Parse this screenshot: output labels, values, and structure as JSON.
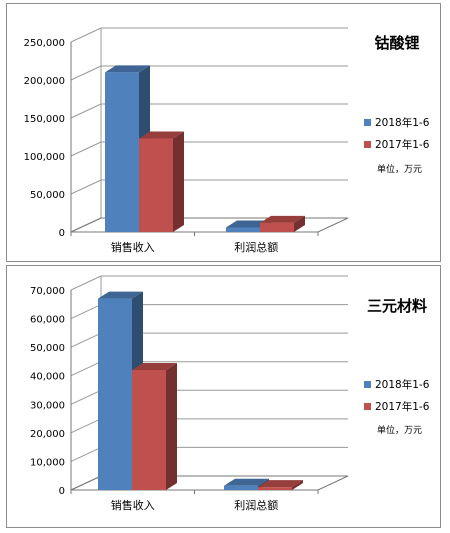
{
  "chart_data": [
    {
      "type": "bar",
      "title": "钴酸锂",
      "categories": [
        "销售收入",
        "利润总额"
      ],
      "series": [
        {
          "name": "2018年1-6",
          "values": [
            210000,
            6000
          ]
        },
        {
          "name": "2017年1-6",
          "values": [
            123000,
            12000
          ]
        }
      ],
      "yticks": [
        "0",
        "50,000",
        "100,000",
        "150,000",
        "200,000",
        "250,000"
      ],
      "ylim": [
        0,
        250000
      ],
      "unit_note": "单位，万元",
      "colors": {
        "s0": "#4f81bd",
        "s1": "#c0504d"
      }
    },
    {
      "type": "bar",
      "title": "三元材料",
      "categories": [
        "销售收入",
        "利润总额"
      ],
      "series": [
        {
          "name": "2018年1-6",
          "values": [
            67000,
            1500
          ]
        },
        {
          "name": "2017年1-6",
          "values": [
            42000,
            1000
          ]
        }
      ],
      "yticks": [
        "0",
        "10,000",
        "20,000",
        "30,000",
        "40,000",
        "50,000",
        "60,000",
        "70,000"
      ],
      "ylim": [
        0,
        70000
      ],
      "unit_note": "单位，万元",
      "colors": {
        "s0": "#4f81bd",
        "s1": "#c0504d"
      }
    }
  ]
}
